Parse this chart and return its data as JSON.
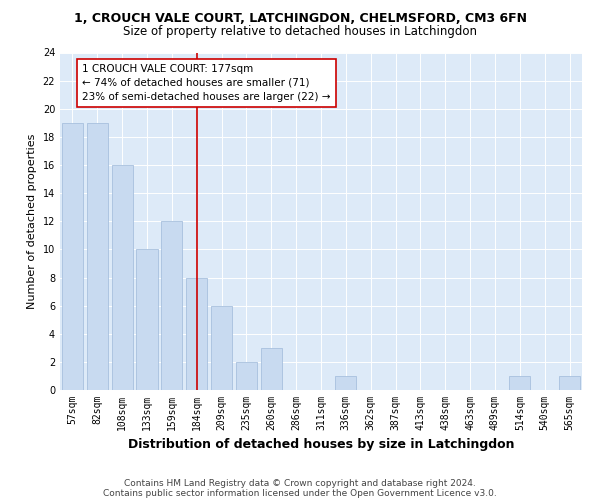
{
  "title": "1, CROUCH VALE COURT, LATCHINGDON, CHELMSFORD, CM3 6FN",
  "subtitle": "Size of property relative to detached houses in Latchingdon",
  "xlabel": "Distribution of detached houses by size in Latchingdon",
  "ylabel": "Number of detached properties",
  "categories": [
    "57sqm",
    "82sqm",
    "108sqm",
    "133sqm",
    "159sqm",
    "184sqm",
    "209sqm",
    "235sqm",
    "260sqm",
    "286sqm",
    "311sqm",
    "336sqm",
    "362sqm",
    "387sqm",
    "413sqm",
    "438sqm",
    "463sqm",
    "489sqm",
    "514sqm",
    "540sqm",
    "565sqm"
  ],
  "values": [
    19,
    19,
    16,
    10,
    12,
    8,
    6,
    2,
    3,
    0,
    0,
    1,
    0,
    0,
    0,
    0,
    0,
    0,
    1,
    0,
    1
  ],
  "bar_color": "#c8daf0",
  "bar_edgecolor": "#a8c0de",
  "highlight_index": 5,
  "highlight_line_color": "#cc0000",
  "annotation_box_text": "1 CROUCH VALE COURT: 177sqm\n← 74% of detached houses are smaller (71)\n23% of semi-detached houses are larger (22) →",
  "annotation_box_color": "#cc0000",
  "ylim": [
    0,
    24
  ],
  "yticks": [
    0,
    2,
    4,
    6,
    8,
    10,
    12,
    14,
    16,
    18,
    20,
    22,
    24
  ],
  "footnote1": "Contains HM Land Registry data © Crown copyright and database right 2024.",
  "footnote2": "Contains public sector information licensed under the Open Government Licence v3.0.",
  "background_color": "#ddeaf8",
  "title_fontsize": 9,
  "subtitle_fontsize": 8.5,
  "xlabel_fontsize": 9,
  "ylabel_fontsize": 8,
  "tick_fontsize": 7,
  "annotation_fontsize": 7.5,
  "footnote_fontsize": 6.5
}
